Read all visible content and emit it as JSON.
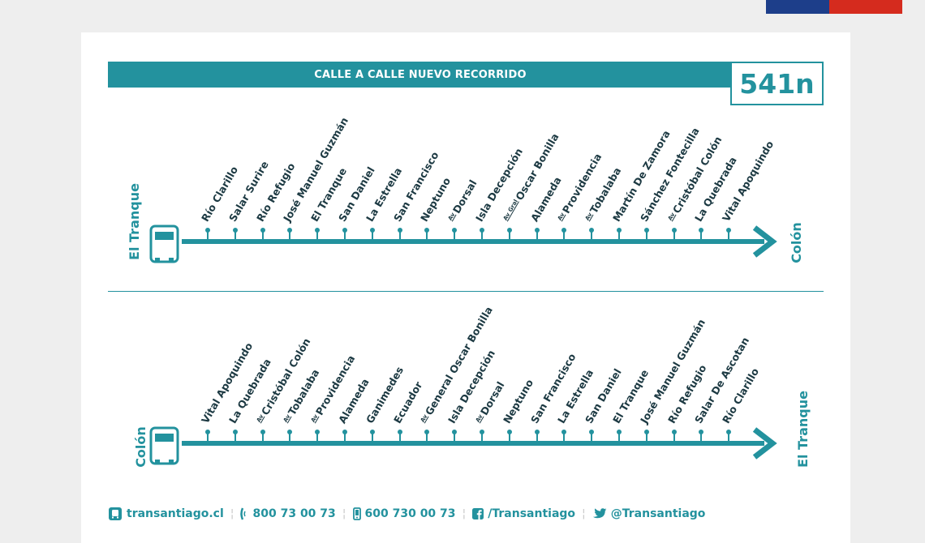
{
  "header": {
    "title": "CALLE A CALLE NUEVO RECORRIDO",
    "route": "541n"
  },
  "colors": {
    "teal": "#23929e",
    "text_dark": "#1d3a43",
    "flag_blue": "#1d3e8a",
    "flag_white": "#ffffff",
    "flag_red": "#d52b1e"
  },
  "route_out": {
    "from": "El Tranque",
    "to": "Colón",
    "stops": [
      {
        "label": "Río Clarillo"
      },
      {
        "label": "Salar Surire"
      },
      {
        "label": "Río Refugio"
      },
      {
        "label": "José Manuel Guzmán"
      },
      {
        "label": "El Tranque"
      },
      {
        "label": "San Daniel"
      },
      {
        "label": "La Estrella"
      },
      {
        "label": "San Francisco"
      },
      {
        "label": "Neptuno"
      },
      {
        "prefix": "Av",
        "label": "Dorsal"
      },
      {
        "label": "Isla Decepción"
      },
      {
        "prefix": "Av Gral",
        "label": "Oscar Bonilla"
      },
      {
        "label": "Alameda"
      },
      {
        "prefix": "Av",
        "label": "Providencia"
      },
      {
        "prefix": "Av",
        "label": "Tobalaba"
      },
      {
        "label": "Martín De Zamora"
      },
      {
        "label": "Sánchez Fontecilla"
      },
      {
        "prefix": "Av",
        "label": "Cristóbal Colón"
      },
      {
        "label": "La Quebrada"
      },
      {
        "label": "Vital Apoquindo"
      }
    ]
  },
  "route_back": {
    "from": "Colón",
    "to": "El Tranque",
    "stops": [
      {
        "label": "Vital Apoquindo"
      },
      {
        "label": "La Quebrada"
      },
      {
        "prefix": "Av",
        "label": "Cristóbal Colón"
      },
      {
        "prefix": "Av",
        "label": "Tobalaba"
      },
      {
        "prefix": "Av",
        "label": "Providencia"
      },
      {
        "label": "Alameda"
      },
      {
        "label": "Ganimedes"
      },
      {
        "label": "Ecuador"
      },
      {
        "prefix": "Av",
        "label": "General Oscar Bonilla"
      },
      {
        "label": "Isla Decepción"
      },
      {
        "prefix": "Av",
        "label": "Dorsal"
      },
      {
        "label": "Neptuno"
      },
      {
        "label": "San Francisco"
      },
      {
        "label": "La Estrella"
      },
      {
        "label": "San Daniel"
      },
      {
        "label": "El Tranque"
      },
      {
        "label": "José Manuel Guzmán"
      },
      {
        "label": "Río Refugio"
      },
      {
        "label": "Salar De Ascotan"
      },
      {
        "label": "Río Clarillo"
      }
    ]
  },
  "footer": {
    "website": "transantiago.cl",
    "phone1": "800 73 00 73",
    "phone2": "600 730 00 73",
    "facebook": "/Transantiago",
    "twitter": "@Transantiago"
  }
}
